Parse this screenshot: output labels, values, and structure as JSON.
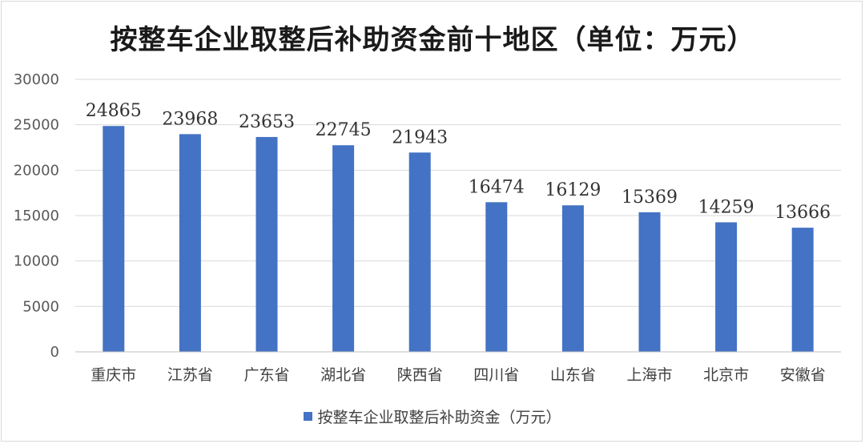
{
  "chart_data": {
    "type": "bar",
    "title": "按整车企业取整后补助资金前十地区（单位：万元）",
    "categories": [
      "重庆市",
      "江苏省",
      "广东省",
      "湖北省",
      "陕西省",
      "四川省",
      "山东省",
      "上海市",
      "北京市",
      "安徽省"
    ],
    "series": [
      {
        "name": "按整车企业取整后补助资金（万元）",
        "values": [
          24865,
          23968,
          23653,
          22745,
          21943,
          16474,
          16129,
          15369,
          14259,
          13666
        ],
        "color": "#4472c4"
      }
    ],
    "ylim": [
      0,
      30000
    ],
    "yticks": [
      0,
      5000,
      10000,
      15000,
      20000,
      25000,
      30000
    ],
    "grid": true,
    "legend": "bottom",
    "data_labels": true
  }
}
